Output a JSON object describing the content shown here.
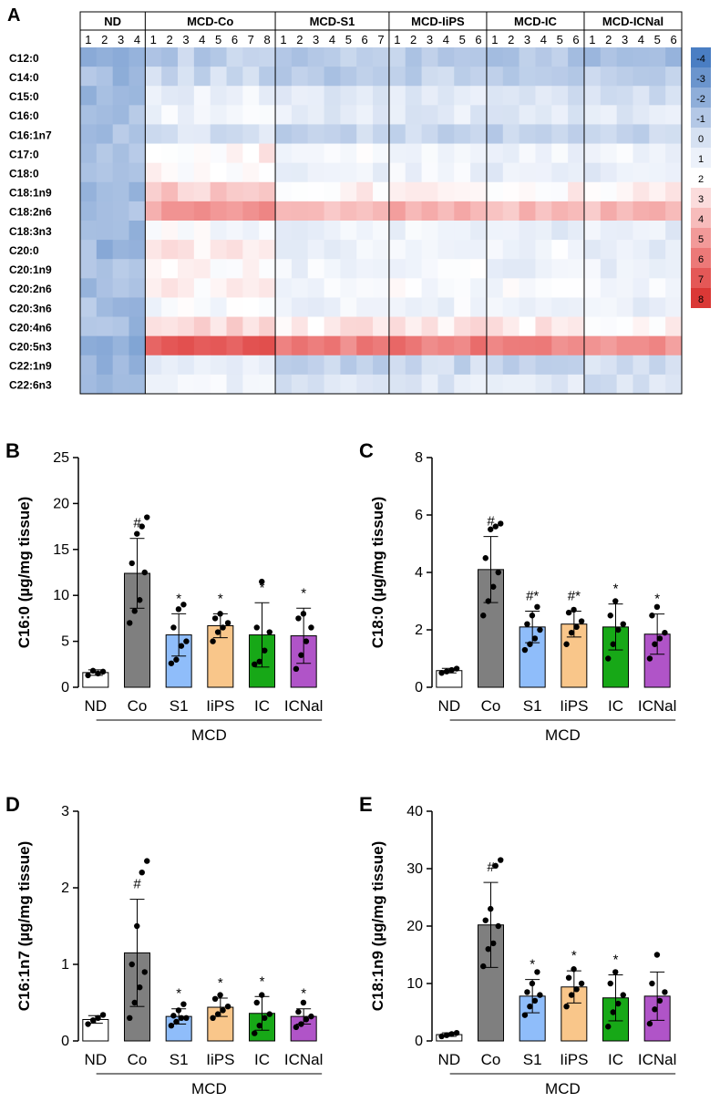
{
  "heatmap": {
    "panel_letter": "A",
    "type": "heatmap",
    "groups": [
      {
        "name": "ND",
        "samples": [
          "1",
          "2",
          "3",
          "4"
        ]
      },
      {
        "name": "MCD-Co",
        "samples": [
          "1",
          "2",
          "3",
          "4",
          "5",
          "6",
          "7",
          "8"
        ]
      },
      {
        "name": "MCD-S1",
        "samples": [
          "1",
          "2",
          "3",
          "4",
          "5",
          "6",
          "7"
        ]
      },
      {
        "name": "MCD-IiPS",
        "samples": [
          "1",
          "2",
          "3",
          "4",
          "5",
          "6"
        ]
      },
      {
        "name": "MCD-IC",
        "samples": [
          "1",
          "2",
          "3",
          "4",
          "5",
          "6"
        ]
      },
      {
        "name": "MCD-ICNal",
        "samples": [
          "1",
          "2",
          "3",
          "4",
          "5",
          "6"
        ]
      }
    ],
    "rows": [
      "C12:0",
      "C14:0",
      "C15:0",
      "C16:0",
      "C16:1n7",
      "C17:0",
      "C18:0",
      "C18:1n9",
      "C18:2n6",
      "C18:3n3",
      "C20:0",
      "C20:1n9",
      "C20:2n6",
      "C20:3n6",
      "C20:4n6",
      "C20:5n3",
      "C22:1n9",
      "C22:6n3"
    ],
    "row_group_means": [
      [
        -1.5,
        -0.8,
        -1.0,
        -0.9,
        -1.2,
        -1.5
      ],
      [
        -1.5,
        -0.3,
        -0.8,
        -0.6,
        -0.8,
        -0.9
      ],
      [
        -1.4,
        1.0,
        0.3,
        0.4,
        0.2,
        0.1
      ],
      [
        -1.4,
        1.4,
        0.5,
        0.6,
        0.4,
        0.4
      ],
      [
        -1.4,
        0.2,
        -0.6,
        -0.3,
        -0.7,
        -0.5
      ],
      [
        -1.4,
        2.3,
        1.4,
        1.6,
        1.3,
        1.2
      ],
      [
        -1.4,
        1.9,
        1.0,
        1.2,
        0.9,
        0.9
      ],
      [
        -1.4,
        3.5,
        2.4,
        2.7,
        2.2,
        2.2
      ],
      [
        -1.4,
        5.0,
        4.2,
        4.4,
        4.0,
        4.0
      ],
      [
        -1.4,
        1.6,
        1.0,
        1.2,
        0.8,
        0.8
      ],
      [
        -1.6,
        2.6,
        1.0,
        1.6,
        1.3,
        0.8
      ],
      [
        -1.4,
        2.0,
        1.2,
        1.4,
        1.1,
        1.0
      ],
      [
        -1.4,
        2.3,
        1.6,
        1.7,
        1.5,
        1.4
      ],
      [
        -1.4,
        1.6,
        1.1,
        1.2,
        1.0,
        0.9
      ],
      [
        -1.4,
        3.0,
        2.6,
        2.8,
        2.6,
        2.3
      ],
      [
        -2.0,
        6.8,
        5.6,
        5.9,
        5.8,
        5.3
      ],
      [
        -2.0,
        0.8,
        -0.5,
        -0.3,
        -0.4,
        -0.2
      ],
      [
        -1.4,
        1.1,
        0.3,
        0.5,
        0.3,
        0.2
      ]
    ],
    "colorbar": {
      "labels": [
        "-4",
        "-3",
        "-2",
        "-1",
        "0",
        "1",
        "2",
        "3",
        "4",
        "5",
        "6",
        "7",
        "8"
      ],
      "values": [
        -4,
        -3,
        -2,
        -1,
        0,
        1,
        2,
        3,
        4,
        5,
        6,
        7,
        8
      ],
      "colors": [
        "#4a7ec3",
        "#6b95cd",
        "#8faed9",
        "#b4c8e6",
        "#d6e1f2",
        "#ecf1fa",
        "#ffffff",
        "#fbdcdc",
        "#f7bcbb",
        "#f29a99",
        "#ec7978",
        "#e45857",
        "#da3836"
      ],
      "zero_color": "#ffffff"
    }
  },
  "bar_panels": [
    {
      "panel_letter": "B",
      "chart_data": {
        "type": "bar",
        "ylabel": "C16:0 (µg/mg tissue)",
        "ylim": [
          0,
          25
        ],
        "yticks": [
          "0",
          "5",
          "10",
          "15",
          "20",
          "25"
        ],
        "categories": [
          "ND",
          "Co",
          "S1",
          "IiPS",
          "IC",
          "ICNal"
        ],
        "values": [
          1.6,
          12.4,
          5.7,
          6.7,
          5.7,
          5.6
        ],
        "errors": [
          0.3,
          3.8,
          2.3,
          1.3,
          3.5,
          3.0
        ],
        "points": [
          [
            1.3,
            1.8,
            1.5,
            1.7
          ],
          [
            7.0,
            8.3,
            9.5,
            12.5,
            13.5,
            16.7,
            17.5,
            18.5
          ],
          [
            2.6,
            3.0,
            4.5,
            5.0,
            6.5,
            8.5,
            9.0
          ],
          [
            5.0,
            6.0,
            6.5,
            7.0,
            7.5,
            8.0
          ],
          [
            2.5,
            2.8,
            4.0,
            6.0,
            6.5,
            11.5
          ],
          [
            2.0,
            3.5,
            5.0,
            6.5,
            7.5,
            8.0
          ]
        ],
        "annotations": [
          "",
          "#",
          "*",
          "*",
          "*",
          "*"
        ],
        "group_label": "MCD",
        "bar_colors": [
          "#ffffff",
          "#7f7f7f",
          "#8fbdfa",
          "#f9c68a",
          "#17a817",
          "#b054c8"
        ]
      }
    },
    {
      "panel_letter": "C",
      "chart_data": {
        "type": "bar",
        "ylabel": "C18:0 (µg/mg tissue)",
        "ylim": [
          0,
          8
        ],
        "yticks": [
          "0",
          "2",
          "4",
          "6",
          "8"
        ],
        "categories": [
          "ND",
          "Co",
          "S1",
          "IiPS",
          "IC",
          "ICNal"
        ],
        "values": [
          0.58,
          4.1,
          2.1,
          2.2,
          2.1,
          1.85
        ],
        "errors": [
          0.08,
          1.15,
          0.55,
          0.45,
          0.8,
          0.7
        ],
        "points": [
          [
            0.5,
            0.55,
            0.6,
            0.65
          ],
          [
            2.5,
            3.0,
            3.5,
            4.0,
            4.5,
            5.5,
            5.6,
            5.7
          ],
          [
            1.3,
            1.5,
            1.7,
            2.0,
            2.2,
            2.5,
            2.8
          ],
          [
            1.5,
            1.9,
            2.1,
            2.3,
            2.6,
            2.7
          ],
          [
            1.0,
            1.5,
            2.0,
            2.2,
            2.5,
            3.0
          ],
          [
            1.0,
            1.5,
            1.7,
            1.9,
            2.5,
            2.8
          ]
        ],
        "annotations": [
          "",
          "#",
          "#*",
          "#*",
          "*",
          "*"
        ],
        "group_label": "MCD",
        "bar_colors": [
          "#ffffff",
          "#7f7f7f",
          "#8fbdfa",
          "#f9c68a",
          "#17a817",
          "#b054c8"
        ]
      }
    },
    {
      "panel_letter": "D",
      "chart_data": {
        "type": "bar",
        "ylabel": "C16:1n7 (µg/mg tissue)",
        "ylim": [
          0,
          3
        ],
        "yticks": [
          "0",
          "1",
          "2",
          "3"
        ],
        "categories": [
          "ND",
          "Co",
          "S1",
          "IiPS",
          "IC",
          "ICNal"
        ],
        "values": [
          0.28,
          1.15,
          0.32,
          0.44,
          0.36,
          0.32
        ],
        "errors": [
          0.05,
          0.7,
          0.1,
          0.12,
          0.22,
          0.1
        ],
        "points": [
          [
            0.22,
            0.27,
            0.3,
            0.34
          ],
          [
            0.3,
            0.5,
            0.7,
            0.9,
            1.0,
            1.5,
            2.2,
            2.35
          ],
          [
            0.2,
            0.25,
            0.3,
            0.3,
            0.33,
            0.4,
            0.48
          ],
          [
            0.3,
            0.35,
            0.4,
            0.45,
            0.55,
            0.6
          ],
          [
            0.1,
            0.2,
            0.3,
            0.35,
            0.5,
            0.6
          ],
          [
            0.18,
            0.22,
            0.28,
            0.32,
            0.38,
            0.5
          ]
        ],
        "annotations": [
          "",
          "#",
          "*",
          "*",
          "*",
          "*"
        ],
        "group_label": "MCD",
        "bar_colors": [
          "#ffffff",
          "#7f7f7f",
          "#8fbdfa",
          "#f9c68a",
          "#17a817",
          "#b054c8"
        ]
      }
    },
    {
      "panel_letter": "E",
      "chart_data": {
        "type": "bar",
        "ylabel": "C18:1n9 (µg/mg tissue)",
        "ylim": [
          0,
          40
        ],
        "yticks": [
          "0",
          "10",
          "20",
          "30",
          "40"
        ],
        "categories": [
          "ND",
          "Co",
          "S1",
          "IiPS",
          "IC",
          "ICNal"
        ],
        "values": [
          1.1,
          20.2,
          7.8,
          9.4,
          7.5,
          7.8
        ],
        "errors": [
          0.3,
          7.4,
          2.9,
          2.8,
          4.0,
          4.2
        ],
        "points": [
          [
            0.8,
            1.0,
            1.2,
            1.4
          ],
          [
            13.0,
            16.0,
            17.0,
            20.0,
            21.0,
            23.0,
            30.5,
            31.5
          ],
          [
            4.5,
            6.0,
            7.0,
            8.0,
            8.5,
            10.0,
            12.0
          ],
          [
            6.0,
            8.0,
            9.0,
            10.0,
            11.0,
            12.5
          ],
          [
            2.5,
            5.0,
            6.5,
            8.0,
            10.0,
            12.0
          ],
          [
            3.0,
            5.5,
            7.0,
            8.5,
            10.0,
            15.0
          ]
        ],
        "annotations": [
          "",
          "#",
          "*",
          "*",
          "*",
          "*"
        ],
        "group_label": "MCD",
        "bar_colors": [
          "#ffffff",
          "#7f7f7f",
          "#8fbdfa",
          "#f9c68a",
          "#17a817",
          "#b054c8"
        ]
      }
    }
  ]
}
